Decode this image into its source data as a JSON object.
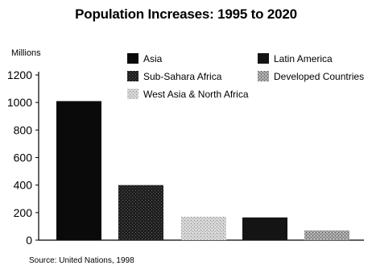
{
  "chart_data": {
    "type": "bar",
    "title": "Population Increases: 1995 to 2020",
    "ylabel": "Millions",
    "ylim": [
      0,
      1200
    ],
    "yticks": [
      0,
      200,
      400,
      600,
      800,
      1000,
      1200
    ],
    "grid": false,
    "legend_position": "top",
    "categories": [
      "Asia",
      "Sub-Sahara Africa",
      "West Asia & North Africa",
      "Latin America",
      "Developed Countries"
    ],
    "values": [
      1010,
      400,
      170,
      165,
      70
    ],
    "colors": [
      "#0a0a0a",
      "#2a2a2a",
      "#c8c8c8",
      "#141414",
      "#9a9a9a"
    ],
    "patterns": [
      "solid",
      "dark-speckle",
      "light-speckle",
      "solid",
      "medium-speckle"
    ],
    "legend_order": [
      "Asia",
      "Latin America",
      "Sub-Sahara Africa",
      "Developed Countries",
      "West Asia & North Africa"
    ]
  },
  "source": "Source: United Nations, 1998"
}
